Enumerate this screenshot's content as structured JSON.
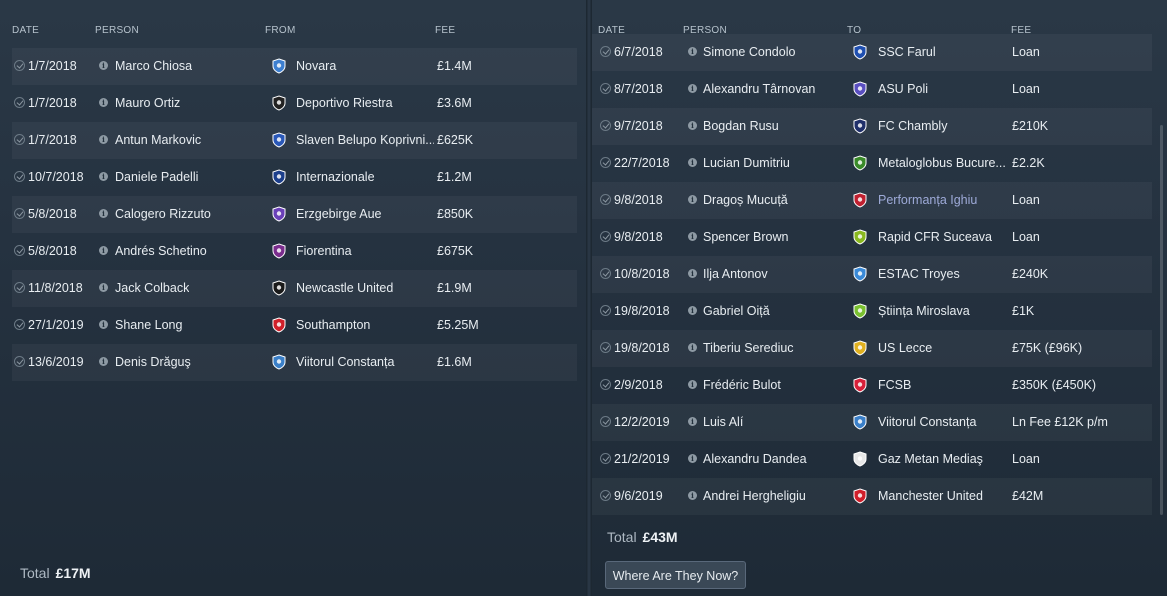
{
  "left": {
    "headers": {
      "date": "DATE",
      "person": "PERSON",
      "from": "FROM",
      "fee": "FEE"
    },
    "rows": [
      {
        "date": "1/7/2018",
        "person": "Marco Chiosa",
        "club": "Novara",
        "fee": "£1.4M",
        "crest": "novara-crest",
        "color": "#3d7fd0"
      },
      {
        "date": "1/7/2018",
        "person": "Mauro Ortiz",
        "club": "Deportivo Riestra",
        "fee": "£3.6M",
        "crest": "riestra-crest",
        "color": "#222222"
      },
      {
        "date": "1/7/2018",
        "person": "Antun Markovic",
        "club": "Slaven Belupo Koprivni...",
        "fee": "£625K",
        "crest": "slaven-belupo-crest",
        "color": "#2a58b8"
      },
      {
        "date": "10/7/2018",
        "person": "Daniele Padelli",
        "club": "Internazionale",
        "fee": "£1.2M",
        "crest": "internazionale-crest",
        "color": "#1c3f8c"
      },
      {
        "date": "5/8/2018",
        "person": "Calogero Rizzuto",
        "club": "Erzgebirge Aue",
        "fee": "£850K",
        "crest": "erzgebirge-aue-crest",
        "color": "#6a40b8"
      },
      {
        "date": "5/8/2018",
        "person": "Andrés Schetino",
        "club": "Fiorentina",
        "fee": "£675K",
        "crest": "fiorentina-crest",
        "color": "#7b2d8e"
      },
      {
        "date": "11/8/2018",
        "person": "Jack Colback",
        "club": "Newcastle United",
        "fee": "£1.9M",
        "crest": "newcastle-crest",
        "color": "#1a1a1a"
      },
      {
        "date": "27/1/2019",
        "person": "Shane Long",
        "club": "Southampton",
        "fee": "£5.25M",
        "crest": "southampton-crest",
        "color": "#d0202a"
      },
      {
        "date": "13/6/2019",
        "person": "Denis Drăguş",
        "club": "Viitorul Constanța",
        "fee": "£1.6M",
        "crest": "viitorul-crest",
        "color": "#3a7fc8"
      }
    ],
    "total_label": "Total",
    "total_value": "£17M"
  },
  "right": {
    "headers": {
      "date": "DATE",
      "person": "PERSON",
      "to": "TO",
      "fee": "FEE"
    },
    "rows": [
      {
        "date": "6/7/2018",
        "person": "Simone Condolo",
        "club": "SSC Farul",
        "fee": "Loan",
        "crest": "farul-crest",
        "color": "#1f4fb0"
      },
      {
        "date": "8/7/2018",
        "person": "Alexandru Târnovan",
        "club": "ASU Poli",
        "fee": "Loan",
        "crest": "asu-poli-crest",
        "color": "#5a4fc0"
      },
      {
        "date": "9/7/2018",
        "person": "Bogdan Rusu",
        "club": "FC Chambly",
        "fee": "£210K",
        "crest": "chambly-crest",
        "color": "#1f2f6a"
      },
      {
        "date": "22/7/2018",
        "person": "Lucian Dumitriu",
        "club": "Metaloglobus Bucure...",
        "fee": "£2.2K",
        "crest": "metaloglobus-crest",
        "color": "#3a8a2a"
      },
      {
        "date": "9/8/2018",
        "person": "Dragoș Mucuță",
        "club": "Performanța Ighiu",
        "fee": "Loan",
        "crest": "performanta-crest",
        "color": "#c02030"
      },
      {
        "date": "9/8/2018",
        "person": "Spencer Brown",
        "club": "Rapid CFR Suceava",
        "fee": "Loan",
        "crest": "rapid-cfr-crest",
        "color": "#8ab820"
      },
      {
        "date": "10/8/2018",
        "person": "Ilja Antonov",
        "club": "ESTAC Troyes",
        "fee": "£240K",
        "crest": "troyes-crest",
        "color": "#3a8ad8"
      },
      {
        "date": "19/8/2018",
        "person": "Gabriel Oiță",
        "club": "Știința Miroslava",
        "fee": "£1K",
        "crest": "miroslava-crest",
        "color": "#7ac030"
      },
      {
        "date": "19/8/2018",
        "person": "Tiberiu Serediuc",
        "club": "US Lecce",
        "fee": "£75K (£96K)",
        "crest": "lecce-crest",
        "color": "#e0b020"
      },
      {
        "date": "2/9/2018",
        "person": "Frédéric Bulot",
        "club": "FCSB",
        "fee": "£350K (£450K)",
        "crest": "fcsb-crest",
        "color": "#d8203a"
      },
      {
        "date": "12/2/2019",
        "person": "Luis Alí",
        "club": "Viitorul Constanța",
        "fee": "Ln Fee £12K p/m",
        "crest": "viitorul-crest",
        "color": "#3a7fc8"
      },
      {
        "date": "21/2/2019",
        "person": "Alexandru Dandea",
        "club": "Gaz Metan Mediaş",
        "fee": "Loan",
        "crest": "gaz-metan-crest",
        "color": "#e8e8e8"
      },
      {
        "date": "9/6/2019",
        "person": "Andrei Hergheligiu",
        "club": "Manchester United",
        "fee": "£42M",
        "crest": "manchester-united-crest",
        "color": "#d01e2a"
      }
    ],
    "total_label": "Total",
    "total_value": "£43M",
    "button_label": "Where Are They Now?"
  }
}
